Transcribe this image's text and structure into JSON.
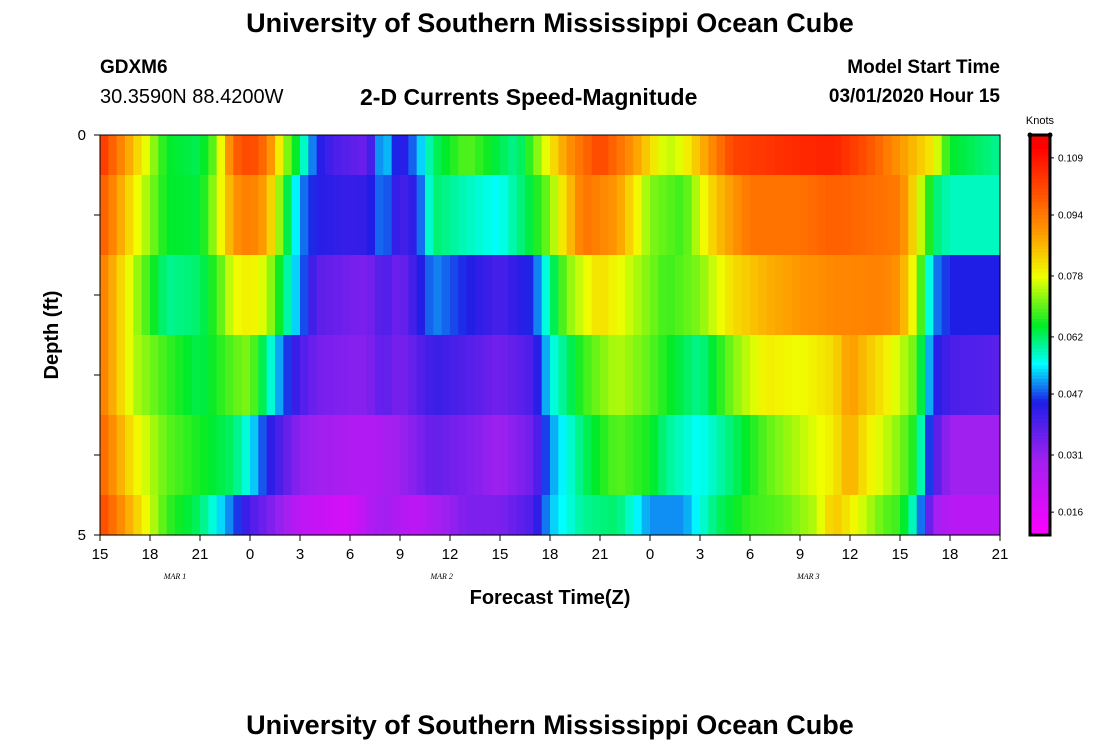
{
  "header": {
    "title": "University of Southern Mississippi Ocean Cube",
    "station_id": "GDXM6",
    "station_coords": "30.3590N 88.4200W",
    "subtitle": "2-D Currents Speed-Magnitude",
    "model_start_label": "Model Start Time",
    "model_start_value": "03/01/2020 Hour 15"
  },
  "footer": {
    "title": "University of Southern Mississippi Ocean Cube"
  },
  "chart_data": {
    "type": "heatmap",
    "xlabel": "Forecast Time(Z)",
    "ylabel": "Depth (ft)",
    "x_ticks": [
      "15",
      "18",
      "21",
      "0",
      "3",
      "6",
      "9",
      "12",
      "15",
      "18",
      "21",
      "0",
      "3",
      "6",
      "9",
      "12",
      "15",
      "18",
      "21"
    ],
    "date_labels": [
      "MAR 1",
      "MAR 2",
      "MAR 3"
    ],
    "date_label_hours": [
      4.5,
      20.5,
      42.5
    ],
    "y_ticks": [
      "0",
      "5"
    ],
    "ylim": [
      0,
      5
    ],
    "colorbar_label": "Knots",
    "colorbar_ticks": [
      "0.109",
      "0.094",
      "0.078",
      "0.062",
      "0.047",
      "0.031",
      "0.016"
    ],
    "colorbar_tick_values": [
      0.109,
      0.094,
      0.078,
      0.062,
      0.047,
      0.031,
      0.016
    ],
    "colorbar_range": [
      0.01,
      0.115
    ],
    "hours_start": 0,
    "hours_step": 0.5,
    "depth_rows": [
      {
        "depth_from": 0,
        "depth_to": 0.5,
        "keys": [
          [
            0,
            0.105
          ],
          [
            2,
            0.085
          ],
          [
            4,
            0.065
          ],
          [
            6,
            0.063
          ],
          [
            7,
            0.072
          ],
          [
            7.5,
            0.085
          ],
          [
            8,
            0.097
          ],
          [
            9,
            0.102
          ],
          [
            10,
            0.095
          ],
          [
            11,
            0.075
          ],
          [
            12,
            0.062
          ],
          [
            13,
            0.045
          ],
          [
            14,
            0.04
          ],
          [
            15,
            0.038
          ],
          [
            16,
            0.036
          ],
          [
            17,
            0.055
          ],
          [
            18,
            0.042
          ],
          [
            19,
            0.05
          ],
          [
            20,
            0.062
          ],
          [
            22,
            0.07
          ],
          [
            25,
            0.06
          ],
          [
            27,
            0.08
          ],
          [
            28,
            0.09
          ],
          [
            30,
            0.102
          ],
          [
            32,
            0.09
          ],
          [
            34,
            0.075
          ],
          [
            35,
            0.078
          ],
          [
            38,
            0.102
          ],
          [
            42,
            0.106
          ],
          [
            44,
            0.107
          ],
          [
            46,
            0.1
          ],
          [
            48,
            0.09
          ],
          [
            50,
            0.08
          ],
          [
            51,
            0.065
          ],
          [
            54,
            0.06
          ]
        ]
      },
      {
        "depth_from": 0.5,
        "depth_to": 1.5,
        "keys": [
          [
            0,
            0.1
          ],
          [
            2,
            0.08
          ],
          [
            4,
            0.065
          ],
          [
            6,
            0.064
          ],
          [
            7,
            0.075
          ],
          [
            8,
            0.09
          ],
          [
            9,
            0.094
          ],
          [
            10,
            0.088
          ],
          [
            11,
            0.068
          ],
          [
            12,
            0.05
          ],
          [
            13,
            0.044
          ],
          [
            15,
            0.042
          ],
          [
            16,
            0.043
          ],
          [
            17,
            0.05
          ],
          [
            18,
            0.04
          ],
          [
            19,
            0.044
          ],
          [
            20,
            0.062
          ],
          [
            22,
            0.058
          ],
          [
            24,
            0.055
          ],
          [
            26,
            0.065
          ],
          [
            27,
            0.072
          ],
          [
            29,
            0.095
          ],
          [
            31,
            0.09
          ],
          [
            33,
            0.072
          ],
          [
            35,
            0.068
          ],
          [
            37,
            0.085
          ],
          [
            39,
            0.095
          ],
          [
            42,
            0.095
          ],
          [
            44,
            0.098
          ],
          [
            46,
            0.096
          ],
          [
            48,
            0.094
          ],
          [
            49,
            0.08
          ],
          [
            50,
            0.062
          ],
          [
            51,
            0.058
          ],
          [
            54,
            0.058
          ]
        ]
      },
      {
        "depth_from": 1.5,
        "depth_to": 2.5,
        "keys": [
          [
            0,
            0.095
          ],
          [
            2,
            0.075
          ],
          [
            4,
            0.06
          ],
          [
            6,
            0.062
          ],
          [
            7,
            0.068
          ],
          [
            8,
            0.078
          ],
          [
            9,
            0.08
          ],
          [
            10,
            0.076
          ],
          [
            11,
            0.062
          ],
          [
            12,
            0.05
          ],
          [
            13,
            0.038
          ],
          [
            15,
            0.035
          ],
          [
            16,
            0.034
          ],
          [
            17,
            0.04
          ],
          [
            18,
            0.035
          ],
          [
            20,
            0.05
          ],
          [
            22,
            0.045
          ],
          [
            24,
            0.04
          ],
          [
            26,
            0.046
          ],
          [
            27,
            0.06
          ],
          [
            28,
            0.072
          ],
          [
            30,
            0.082
          ],
          [
            32,
            0.075
          ],
          [
            34,
            0.068
          ],
          [
            36,
            0.072
          ],
          [
            38,
            0.082
          ],
          [
            40,
            0.087
          ],
          [
            42,
            0.09
          ],
          [
            44,
            0.092
          ],
          [
            47,
            0.093
          ],
          [
            48,
            0.09
          ],
          [
            49,
            0.075
          ],
          [
            50,
            0.05
          ],
          [
            51,
            0.045
          ],
          [
            54,
            0.045
          ]
        ]
      },
      {
        "depth_from": 2.5,
        "depth_to": 3.5,
        "keys": [
          [
            0,
            0.095
          ],
          [
            2,
            0.075
          ],
          [
            4,
            0.068
          ],
          [
            6,
            0.063
          ],
          [
            8,
            0.07
          ],
          [
            9,
            0.072
          ],
          [
            10,
            0.06
          ],
          [
            11,
            0.048
          ],
          [
            12,
            0.04
          ],
          [
            13,
            0.035
          ],
          [
            15,
            0.033
          ],
          [
            16,
            0.033
          ],
          [
            17,
            0.038
          ],
          [
            18,
            0.034
          ],
          [
            20,
            0.042
          ],
          [
            22,
            0.039
          ],
          [
            24,
            0.035
          ],
          [
            26,
            0.04
          ],
          [
            27,
            0.055
          ],
          [
            29,
            0.068
          ],
          [
            31,
            0.075
          ],
          [
            33,
            0.07
          ],
          [
            34,
            0.066
          ],
          [
            36,
            0.06
          ],
          [
            38,
            0.072
          ],
          [
            40,
            0.08
          ],
          [
            42,
            0.078
          ],
          [
            44,
            0.082
          ],
          [
            45,
            0.09
          ],
          [
            46,
            0.085
          ],
          [
            48,
            0.076
          ],
          [
            49,
            0.07
          ],
          [
            50,
            0.045
          ],
          [
            51,
            0.04
          ],
          [
            54,
            0.038
          ]
        ]
      },
      {
        "depth_from": 3.5,
        "depth_to": 4.5,
        "keys": [
          [
            0,
            0.098
          ],
          [
            2,
            0.08
          ],
          [
            4,
            0.07
          ],
          [
            6,
            0.066
          ],
          [
            8,
            0.062
          ],
          [
            9,
            0.055
          ],
          [
            10,
            0.045
          ],
          [
            11,
            0.038
          ],
          [
            12,
            0.032
          ],
          [
            13,
            0.03
          ],
          [
            15,
            0.027
          ],
          [
            16,
            0.026
          ],
          [
            17,
            0.028
          ],
          [
            18,
            0.03
          ],
          [
            20,
            0.037
          ],
          [
            22,
            0.034
          ],
          [
            24,
            0.03
          ],
          [
            26,
            0.036
          ],
          [
            27,
            0.05
          ],
          [
            29,
            0.062
          ],
          [
            31,
            0.07
          ],
          [
            33,
            0.066
          ],
          [
            34,
            0.06
          ],
          [
            36,
            0.055
          ],
          [
            38,
            0.062
          ],
          [
            40,
            0.07
          ],
          [
            42,
            0.075
          ],
          [
            44,
            0.08
          ],
          [
            45,
            0.088
          ],
          [
            46,
            0.08
          ],
          [
            48,
            0.072
          ],
          [
            49,
            0.065
          ],
          [
            50,
            0.04
          ],
          [
            51,
            0.03
          ],
          [
            54,
            0.03
          ]
        ]
      },
      {
        "depth_from": 4.5,
        "depth_to": 5,
        "keys": [
          [
            0,
            0.102
          ],
          [
            2,
            0.085
          ],
          [
            4,
            0.068
          ],
          [
            6,
            0.062
          ],
          [
            7,
            0.055
          ],
          [
            8,
            0.048
          ],
          [
            9,
            0.04
          ],
          [
            10,
            0.035
          ],
          [
            11,
            0.03
          ],
          [
            12,
            0.024
          ],
          [
            13,
            0.022
          ],
          [
            14,
            0.02
          ],
          [
            15,
            0.019
          ],
          [
            16,
            0.025
          ],
          [
            17,
            0.03
          ],
          [
            18,
            0.026
          ],
          [
            19,
            0.024
          ],
          [
            20,
            0.028
          ],
          [
            22,
            0.034
          ],
          [
            24,
            0.034
          ],
          [
            26,
            0.04
          ],
          [
            27,
            0.052
          ],
          [
            29,
            0.06
          ],
          [
            31,
            0.062
          ],
          [
            33,
            0.05
          ],
          [
            35,
            0.05
          ],
          [
            37,
            0.062
          ],
          [
            39,
            0.068
          ],
          [
            41,
            0.07
          ],
          [
            43,
            0.075
          ],
          [
            44,
            0.085
          ],
          [
            45,
            0.08
          ],
          [
            47,
            0.07
          ],
          [
            48,
            0.068
          ],
          [
            49,
            0.055
          ],
          [
            50,
            0.03
          ],
          [
            51,
            0.025
          ],
          [
            54,
            0.025
          ]
        ]
      }
    ]
  }
}
